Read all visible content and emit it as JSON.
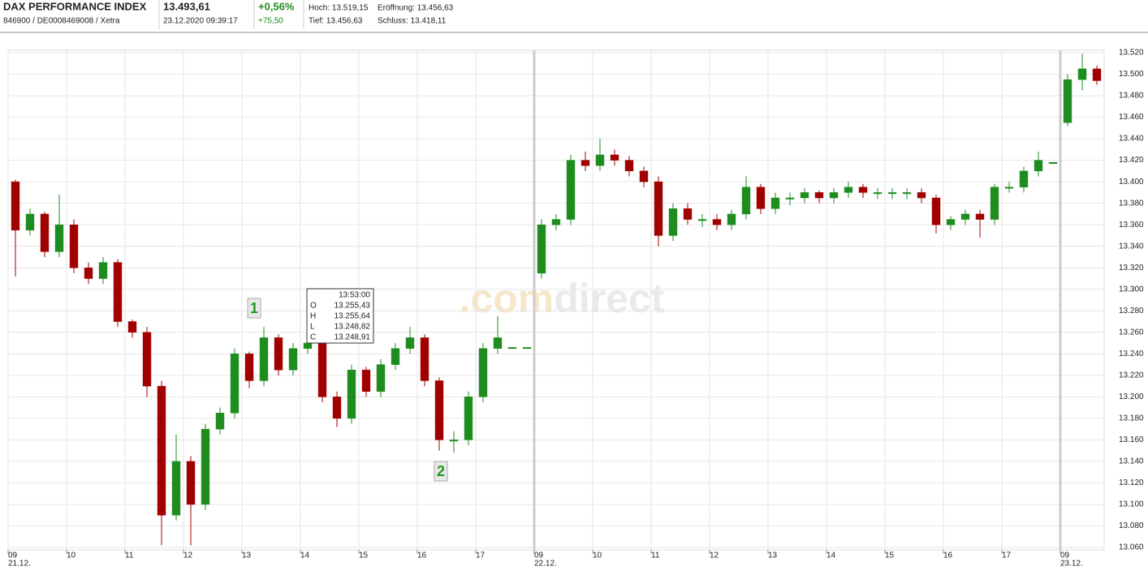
{
  "header": {
    "name": "DAX PERFORMANCE INDEX",
    "ids": "846900 / DE0008469008 / Xetra",
    "price": "13.493,61",
    "timestamp": "23.12.2020 09:39:17",
    "change_pct": "+0,56%",
    "change_abs": "+75,50",
    "high": "Hoch: 13.519,15",
    "open": "Eröffnung: 13.456,63",
    "low": "Tief: 13.456,63",
    "close": "Schluss: 13.418,11"
  },
  "chart_data": {
    "type": "candlestick",
    "open": [
      13400,
      13355,
      13370,
      13335,
      13360,
      13320,
      13310,
      13325,
      13270,
      13260,
      13210,
      13090,
      13140,
      13100,
      13170,
      13185,
      13240,
      13215,
      13255,
      13225,
      13245,
      13250,
      13200,
      13180,
      13225,
      13205,
      13230,
      13245,
      13255,
      13215,
      13160,
      13160,
      13200,
      13245,
      13246,
      13246,
      13315,
      13360,
      13365,
      13420,
      13415,
      13425,
      13420,
      13410,
      13400,
      13350,
      13375,
      13365,
      13365,
      13360,
      13370,
      13395,
      13375,
      13385,
      13385,
      13390,
      13385,
      13390,
      13395,
      13390,
      13390,
      13390,
      13390,
      13385,
      13360,
      13365,
      13370,
      13365,
      13395,
      13395,
      13410,
      13418,
      13455,
      13495,
      13505
    ],
    "high": [
      13402,
      13375,
      13372,
      13388,
      13365,
      13325,
      13330,
      13328,
      13272,
      13265,
      13215,
      13165,
      13145,
      13175,
      13190,
      13245,
      13242,
      13265,
      13258,
      13250,
      13256,
      13252,
      13205,
      13230,
      13228,
      13235,
      13250,
      13265,
      13258,
      13218,
      13168,
      13205,
      13250,
      13275,
      13246,
      13246,
      13365,
      13370,
      13425,
      13428,
      13440,
      13430,
      13424,
      13414,
      13405,
      13380,
      13380,
      13370,
      13370,
      13374,
      13405,
      13398,
      13390,
      13390,
      13394,
      13392,
      13394,
      13400,
      13398,
      13394,
      13394,
      13394,
      13394,
      13388,
      13368,
      13374,
      13374,
      13398,
      13400,
      13414,
      13428,
      13418,
      13500,
      13519,
      13508
    ],
    "low": [
      13312,
      13350,
      13330,
      13330,
      13315,
      13305,
      13305,
      13265,
      13255,
      13200,
      13062,
      13085,
      13062,
      13095,
      13165,
      13180,
      13208,
      13210,
      13220,
      13220,
      13240,
      13195,
      13172,
      13175,
      13200,
      13200,
      13225,
      13240,
      13210,
      13150,
      13148,
      13155,
      13195,
      13240,
      13246,
      13246,
      13310,
      13355,
      13360,
      13410,
      13410,
      13415,
      13405,
      13395,
      13340,
      13345,
      13360,
      13358,
      13355,
      13355,
      13365,
      13370,
      13370,
      13378,
      13380,
      13380,
      13380,
      13385,
      13385,
      13384,
      13384,
      13384,
      13380,
      13352,
      13355,
      13360,
      13348,
      13360,
      13390,
      13390,
      13405,
      13418,
      13452,
      13485,
      13490
    ],
    "close": [
      13355,
      13370,
      13335,
      13360,
      13320,
      13310,
      13325,
      13270,
      13260,
      13210,
      13090,
      13140,
      13100,
      13170,
      13185,
      13240,
      13215,
      13255,
      13225,
      13245,
      13250,
      13200,
      13180,
      13225,
      13205,
      13230,
      13245,
      13255,
      13215,
      13160,
      13160,
      13200,
      13245,
      13255,
      13246,
      13246,
      13360,
      13365,
      13420,
      13415,
      13425,
      13420,
      13410,
      13400,
      13350,
      13375,
      13365,
      13365,
      13360,
      13370,
      13395,
      13375,
      13385,
      13385,
      13390,
      13385,
      13390,
      13395,
      13390,
      13390,
      13390,
      13390,
      13385,
      13360,
      13365,
      13370,
      13365,
      13395,
      13395,
      13410,
      13420,
      13418,
      13495,
      13505,
      13494
    ],
    "up_color": "#1e8c1e",
    "down_color": "#a00000",
    "xlim": [
      0,
      75
    ],
    "xticks": [
      {
        "value": 0,
        "label": "09"
      },
      {
        "value": 4,
        "label": "10"
      },
      {
        "value": 8,
        "label": "11"
      },
      {
        "value": 12,
        "label": "12"
      },
      {
        "value": 16,
        "label": "13"
      },
      {
        "value": 20,
        "label": "14"
      },
      {
        "value": 24,
        "label": "15"
      },
      {
        "value": 28,
        "label": "16"
      },
      {
        "value": 32,
        "label": "17"
      },
      {
        "value": 36,
        "label": "09"
      },
      {
        "value": 40,
        "label": "10"
      },
      {
        "value": 44,
        "label": "11"
      },
      {
        "value": 48,
        "label": "12"
      },
      {
        "value": 52,
        "label": "13"
      },
      {
        "value": 56,
        "label": "14"
      },
      {
        "value": 60,
        "label": "15"
      },
      {
        "value": 64,
        "label": "16"
      },
      {
        "value": 68,
        "label": "17"
      },
      {
        "value": 72,
        "label": "09"
      }
    ],
    "date_labels": [
      {
        "value": 0,
        "label": "21.12."
      },
      {
        "value": 36,
        "label": "22.12."
      },
      {
        "value": 72,
        "label": "23.12."
      }
    ],
    "ylim": [
      13060,
      13520
    ],
    "yticks": [
      {
        "value": 13060,
        "label": "13.060"
      },
      {
        "value": 13080,
        "label": "13.080"
      },
      {
        "value": 13100,
        "label": "13.100"
      },
      {
        "value": 13120,
        "label": "13.120"
      },
      {
        "value": 13140,
        "label": "13.140"
      },
      {
        "value": 13160,
        "label": "13.160"
      },
      {
        "value": 13180,
        "label": "13.180"
      },
      {
        "value": 13200,
        "label": "13.200"
      },
      {
        "value": 13220,
        "label": "13.220"
      },
      {
        "value": 13240,
        "label": "13.240"
      },
      {
        "value": 13260,
        "label": "13.260"
      },
      {
        "value": 13280,
        "label": "13.280"
      },
      {
        "value": 13300,
        "label": "13.300"
      },
      {
        "value": 13320,
        "label": "13.320"
      },
      {
        "value": 13340,
        "label": "13.340"
      },
      {
        "value": 13360,
        "label": "13.360"
      },
      {
        "value": 13380,
        "label": "13.380"
      },
      {
        "value": 13400,
        "label": "13.400"
      },
      {
        "value": 13420,
        "label": "13.420"
      },
      {
        "value": 13440,
        "label": "13.440"
      },
      {
        "value": 13460,
        "label": "13.460"
      },
      {
        "value": 13480,
        "label": "13.480"
      },
      {
        "value": 13500,
        "label": "13.500"
      },
      {
        "value": 13520,
        "label": "13.520"
      }
    ],
    "grid": true,
    "annotations": [
      "1",
      "2"
    ],
    "tooltip": {
      "time": "13:53:00",
      "rows": [
        [
          "O",
          "13.255,43"
        ],
        [
          "H",
          "13.255,64"
        ],
        [
          "L",
          "13.248,82"
        ],
        [
          "C",
          "13.248,91"
        ]
      ]
    },
    "watermark": [
      ".com",
      "direct"
    ]
  }
}
